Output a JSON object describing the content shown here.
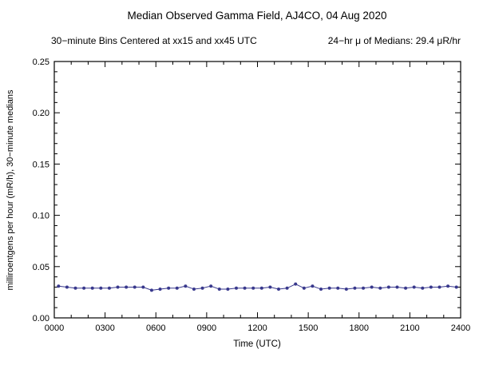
{
  "chart_data": {
    "type": "line",
    "title": "Median Observed Gamma Field, AJ4CO, 04 Aug 2020",
    "subtitle_left": "30−minute Bins Centered at xx15 and xx45 UTC",
    "subtitle_right": "24−hr μ of Medians: 29.4 μR/hr",
    "xlabel": "Time (UTC)",
    "ylabel": "milliroentgens per hour (mR/h), 30−minute medians",
    "xlim": [
      0,
      24
    ],
    "ylim": [
      0,
      0.25
    ],
    "grid": false,
    "legend": false,
    "x_major_ticks": [
      0,
      3,
      6,
      9,
      12,
      15,
      18,
      21,
      24
    ],
    "x_tick_labels": [
      "0000",
      "0300",
      "0600",
      "0900",
      "1200",
      "1500",
      "1800",
      "2100",
      "2400"
    ],
    "x_minor_step": 1,
    "y_major_ticks": [
      0,
      0.05,
      0.1,
      0.15,
      0.2,
      0.25
    ],
    "y_tick_labels": [
      "0.00",
      "0.05",
      "0.10",
      "0.15",
      "0.20",
      "0.25"
    ],
    "y_minor_step": 0.01,
    "line_color": "#38388c",
    "marker_color": "#38388c",
    "x": [
      0.25,
      0.75,
      1.25,
      1.75,
      2.25,
      2.75,
      3.25,
      3.75,
      4.25,
      4.75,
      5.25,
      5.75,
      6.25,
      6.75,
      7.25,
      7.75,
      8.25,
      8.75,
      9.25,
      9.75,
      10.25,
      10.75,
      11.25,
      11.75,
      12.25,
      12.75,
      13.25,
      13.75,
      14.25,
      14.75,
      15.25,
      15.75,
      16.25,
      16.75,
      17.25,
      17.75,
      18.25,
      18.75,
      19.25,
      19.75,
      20.25,
      20.75,
      21.25,
      21.75,
      22.25,
      22.75,
      23.25,
      23.75
    ],
    "y": [
      0.031,
      0.03,
      0.029,
      0.029,
      0.029,
      0.029,
      0.029,
      0.03,
      0.03,
      0.03,
      0.03,
      0.027,
      0.028,
      0.029,
      0.029,
      0.031,
      0.028,
      0.029,
      0.031,
      0.028,
      0.028,
      0.029,
      0.029,
      0.029,
      0.029,
      0.03,
      0.028,
      0.029,
      0.033,
      0.029,
      0.031,
      0.028,
      0.029,
      0.029,
      0.028,
      0.029,
      0.029,
      0.03,
      0.029,
      0.03,
      0.03,
      0.029,
      0.03,
      0.029,
      0.03,
      0.03,
      0.031,
      0.03
    ]
  }
}
